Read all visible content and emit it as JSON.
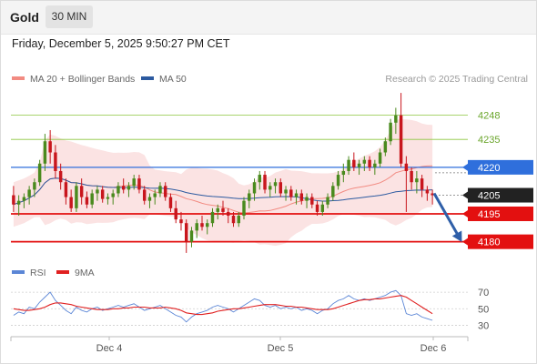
{
  "header": {
    "title": "Gold",
    "timeframe": "30 MIN"
  },
  "timestamp": "Friday, December 5, 2025 9:50:27 PM CET",
  "legend": {
    "ma20": {
      "label": "MA 20 + Bollinger Bands",
      "color": "#f28b82"
    },
    "ma50": {
      "label": "MA 50",
      "color": "#2c5aa0"
    },
    "copyright": "Research © 2025 Trading Central"
  },
  "rsi_legend": {
    "rsi": {
      "label": "RSI",
      "color": "#5b86d6"
    },
    "ma9": {
      "label": "9MA",
      "color": "#e02020"
    }
  },
  "chart_data": [
    {
      "type": "candlestick",
      "title": "Gold",
      "ylim": [
        4172,
        4262
      ],
      "x_ticks": [
        "Dec 4",
        "Dec 5",
        "Dec 6"
      ],
      "levels": [
        {
          "value": 4248,
          "label": "4248",
          "style": "green-line",
          "color": "#8cc63f"
        },
        {
          "value": 4235,
          "label": "4235",
          "style": "green-line",
          "color": "#8cc63f"
        },
        {
          "value": 4220,
          "label": "4220",
          "style": "resistance",
          "color": "#2f6fdc"
        },
        {
          "value": 4205,
          "label": "4205",
          "style": "last-price",
          "color": "#222222"
        },
        {
          "value": 4195,
          "label": "4195",
          "style": "support",
          "color": "#e31010"
        },
        {
          "value": 4180,
          "label": "4180",
          "style": "support",
          "color": "#e31010"
        }
      ],
      "forecast_arrow": {
        "from": 4206,
        "to": 4180
      },
      "candles": [
        [
          4205,
          4210,
          4196,
          4200
        ],
        [
          4200,
          4205,
          4194,
          4202
        ],
        [
          4202,
          4206,
          4198,
          4204
        ],
        [
          4204,
          4210,
          4200,
          4208
        ],
        [
          4208,
          4214,
          4204,
          4212
        ],
        [
          4212,
          4224,
          4210,
          4222
        ],
        [
          4222,
          4238,
          4218,
          4234
        ],
        [
          4234,
          4240,
          4222,
          4228
        ],
        [
          4228,
          4232,
          4214,
          4218
        ],
        [
          4218,
          4222,
          4208,
          4212
        ],
        [
          4212,
          4214,
          4200,
          4204
        ],
        [
          4204,
          4208,
          4196,
          4198
        ],
        [
          4198,
          4212,
          4196,
          4210
        ],
        [
          4210,
          4214,
          4200,
          4204
        ],
        [
          4204,
          4207,
          4198,
          4200
        ],
        [
          4200,
          4208,
          4198,
          4206
        ],
        [
          4206,
          4210,
          4202,
          4208
        ],
        [
          4208,
          4210,
          4201,
          4203
        ],
        [
          4203,
          4206,
          4200,
          4204
        ],
        [
          4204,
          4208,
          4200,
          4206
        ],
        [
          4206,
          4212,
          4204,
          4210
        ],
        [
          4210,
          4214,
          4206,
          4208
        ],
        [
          4208,
          4212,
          4204,
          4210
        ],
        [
          4210,
          4216,
          4208,
          4214
        ],
        [
          4214,
          4216,
          4206,
          4208
        ],
        [
          4208,
          4210,
          4200,
          4202
        ],
        [
          4202,
          4206,
          4198,
          4204
        ],
        [
          4204,
          4208,
          4200,
          4206
        ],
        [
          4206,
          4212,
          4204,
          4210
        ],
        [
          4210,
          4212,
          4202,
          4204
        ],
        [
          4204,
          4206,
          4196,
          4198
        ],
        [
          4198,
          4202,
          4190,
          4192
        ],
        [
          4192,
          4196,
          4186,
          4190
        ],
        [
          4190,
          4192,
          4174,
          4180
        ],
        [
          4180,
          4188,
          4177,
          4186
        ],
        [
          4186,
          4192,
          4182,
          4190
        ],
        [
          4190,
          4194,
          4186,
          4188
        ],
        [
          4188,
          4192,
          4184,
          4190
        ],
        [
          4190,
          4198,
          4188,
          4196
        ],
        [
          4196,
          4200,
          4192,
          4198
        ],
        [
          4198,
          4202,
          4194,
          4196
        ],
        [
          4196,
          4198,
          4190,
          4194
        ],
        [
          4194,
          4196,
          4188,
          4190
        ],
        [
          4190,
          4196,
          4188,
          4194
        ],
        [
          4194,
          4204,
          4192,
          4202
        ],
        [
          4202,
          4208,
          4198,
          4206
        ],
        [
          4206,
          4214,
          4202,
          4212
        ],
        [
          4212,
          4218,
          4208,
          4216
        ],
        [
          4216,
          4218,
          4206,
          4208
        ],
        [
          4208,
          4212,
          4204,
          4210
        ],
        [
          4210,
          4214,
          4206,
          4212
        ],
        [
          4212,
          4214,
          4204,
          4206
        ],
        [
          4206,
          4210,
          4202,
          4208
        ],
        [
          4208,
          4210,
          4202,
          4204
        ],
        [
          4204,
          4208,
          4200,
          4206
        ],
        [
          4206,
          4208,
          4200,
          4202
        ],
        [
          4202,
          4206,
          4198,
          4204
        ],
        [
          4204,
          4206,
          4198,
          4200
        ],
        [
          4200,
          4202,
          4194,
          4196
        ],
        [
          4196,
          4202,
          4194,
          4200
        ],
        [
          4200,
          4206,
          4198,
          4204
        ],
        [
          4204,
          4212,
          4202,
          4210
        ],
        [
          4210,
          4218,
          4208,
          4216
        ],
        [
          4216,
          4222,
          4212,
          4218
        ],
        [
          4218,
          4226,
          4216,
          4224
        ],
        [
          4224,
          4228,
          4218,
          4220
        ],
        [
          4220,
          4224,
          4216,
          4222
        ],
        [
          4222,
          4226,
          4218,
          4224
        ],
        [
          4224,
          4226,
          4218,
          4220
        ],
        [
          4220,
          4224,
          4216,
          4222
        ],
        [
          4222,
          4230,
          4220,
          4228
        ],
        [
          4228,
          4236,
          4226,
          4234
        ],
        [
          4234,
          4246,
          4232,
          4244
        ],
        [
          4244,
          4252,
          4238,
          4248
        ],
        [
          4248,
          4260,
          4220,
          4222
        ],
        [
          4222,
          4226,
          4196,
          4218
        ],
        [
          4218,
          4220,
          4208,
          4212
        ],
        [
          4212,
          4218,
          4206,
          4214
        ],
        [
          4214,
          4216,
          4204,
          4208
        ],
        [
          4208,
          4210,
          4202,
          4206
        ],
        [
          4206,
          4208,
          4200,
          4205
        ]
      ]
    },
    {
      "type": "line",
      "title": "RSI",
      "ylim": [
        25,
        80
      ],
      "y_ticks": [
        70,
        50,
        30
      ],
      "series": [
        {
          "name": "RSI",
          "values": [
            42,
            46,
            44,
            52,
            50,
            58,
            64,
            70,
            60,
            54,
            48,
            44,
            52,
            48,
            46,
            50,
            52,
            48,
            50,
            52,
            54,
            52,
            54,
            56,
            52,
            48,
            50,
            52,
            54,
            50,
            46,
            42,
            40,
            34,
            40,
            44,
            46,
            48,
            52,
            54,
            52,
            50,
            46,
            50,
            54,
            58,
            62,
            60,
            54,
            52,
            54,
            50,
            52,
            50,
            52,
            48,
            50,
            48,
            44,
            48,
            50,
            56,
            60,
            62,
            66,
            62,
            60,
            62,
            60,
            62,
            64,
            66,
            70,
            72,
            66,
            44,
            42,
            44,
            40,
            38,
            36
          ]
        },
        {
          "name": "9MA",
          "values": [
            50,
            49,
            48,
            48,
            49,
            50,
            52,
            55,
            57,
            57,
            56,
            55,
            53,
            52,
            51,
            50,
            49,
            49,
            49,
            50,
            50,
            51,
            51,
            52,
            52,
            52,
            51,
            51,
            51,
            52,
            51,
            50,
            48,
            45,
            44,
            43,
            43,
            44,
            45,
            47,
            48,
            49,
            50,
            50,
            51,
            52,
            53,
            54,
            55,
            55,
            55,
            54,
            53,
            53,
            52,
            52,
            51,
            50,
            49,
            49,
            49,
            50,
            52,
            54,
            56,
            58,
            60,
            61,
            61,
            62,
            62,
            63,
            64,
            65,
            66,
            64,
            60,
            56,
            52,
            48,
            44
          ]
        }
      ]
    }
  ]
}
